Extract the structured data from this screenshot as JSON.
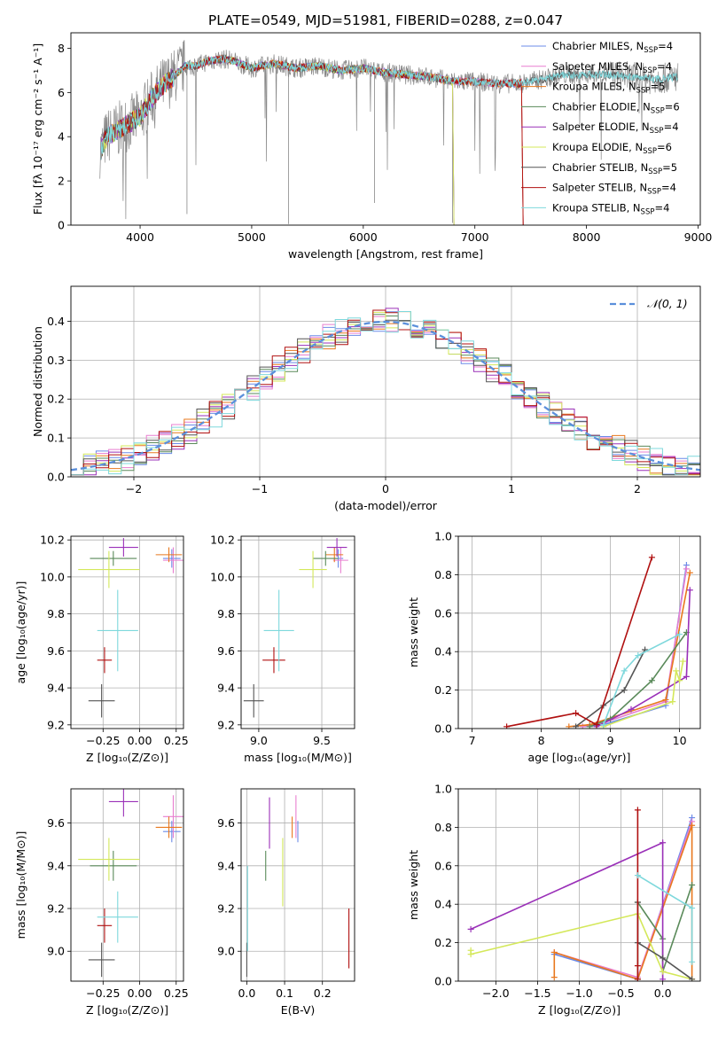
{
  "figure_title": "PLATE=0549, MJD=51981, FIBERID=0288, z=0.047",
  "colors": {
    "chabrier_miles": "#6b8be8",
    "salpeter_miles": "#e87fd0",
    "kroupa_miles": "#e8781e",
    "chabrier_elodie": "#5a8a5a",
    "salpeter_elodie": "#9a30b8",
    "kroupa_elodie": "#d4e85a",
    "chabrier_stelib": "#555555",
    "salpeter_stelib": "#b01010",
    "kroupa_stelib": "#7ed8dc",
    "data": "#888888",
    "gaussian": "#5b8fdb"
  },
  "chart_data": [
    {
      "id": "spectrum",
      "type": "line",
      "title": "PLATE=0549, MJD=51981, FIBERID=0288, z=0.047",
      "xlabel": "wavelength [Angstrom, rest frame]",
      "ylabel": "Flux [fλ 10⁻¹⁷ erg cm⁻² s⁻¹ A⁻¹]",
      "xlim": [
        3380,
        9020
      ],
      "ylim": [
        0,
        8.7
      ],
      "xticks": [
        4000,
        5000,
        6000,
        7000,
        8000,
        9000
      ],
      "yticks": [
        0,
        2,
        4,
        6,
        8
      ],
      "continuum": {
        "x": [
          3650,
          3700,
          3800,
          3900,
          4000,
          4100,
          4200,
          4300,
          4400,
          4500,
          4600,
          4700,
          4800,
          4900,
          5000,
          5200,
          5400,
          5600,
          5800,
          6000,
          6200,
          6400,
          6600,
          6800,
          7000,
          7200,
          7400,
          7600,
          7800,
          8000,
          8200,
          8400,
          8600,
          8800
        ],
        "y": [
          3.4,
          4.0,
          4.3,
          4.6,
          4.9,
          5.7,
          6.3,
          6.7,
          7.2,
          7.2,
          7.4,
          7.5,
          7.5,
          7.3,
          7.1,
          7.3,
          7.1,
          7.2,
          7.0,
          7.1,
          6.9,
          6.8,
          6.7,
          6.5,
          6.5,
          6.4,
          6.4,
          6.6,
          6.8,
          6.8,
          6.8,
          6.7,
          6.6,
          6.7
        ]
      },
      "legend": [
        {
          "label": "Chabrier MILES, N",
          "sub": "SSP",
          "suffix": "=4",
          "color_key": "chabrier_miles"
        },
        {
          "label": "Salpeter MILES, N",
          "sub": "SSP",
          "suffix": "=4",
          "color_key": "salpeter_miles"
        },
        {
          "label": "Kroupa MILES, N",
          "sub": "SSP",
          "suffix": "=5",
          "color_key": "kroupa_miles"
        },
        {
          "label": "Chabrier ELODIE, N",
          "sub": "SSP",
          "suffix": "=6",
          "color_key": "chabrier_elodie"
        },
        {
          "label": "Salpeter ELODIE, N",
          "sub": "SSP",
          "suffix": "=4",
          "color_key": "salpeter_elodie"
        },
        {
          "label": "Kroupa ELODIE, N",
          "sub": "SSP",
          "suffix": "=6",
          "color_key": "kroupa_elodie"
        },
        {
          "label": "Chabrier STELIB, N",
          "sub": "SSP",
          "suffix": "=5",
          "color_key": "chabrier_stelib"
        },
        {
          "label": "Salpeter STELIB, N",
          "sub": "SSP",
          "suffix": "=4",
          "color_key": "salpeter_stelib"
        },
        {
          "label": "Kroupa STELIB, N",
          "sub": "SSP",
          "suffix": "=4",
          "color_key": "kroupa_stelib"
        }
      ]
    },
    {
      "id": "residuals",
      "type": "line",
      "xlabel": "(data-model)/error",
      "ylabel": "Normed distribution",
      "xlim": [
        -2.5,
        2.5
      ],
      "ylim": [
        0,
        0.49
      ],
      "xticks": [
        -2,
        -1,
        0,
        1,
        2
      ],
      "yticks": [
        0.0,
        0.1,
        0.2,
        0.3,
        0.4
      ],
      "gaussian_label": "𝒩(0, 1)",
      "grid": true
    },
    {
      "id": "age_vs_Z",
      "type": "scatter",
      "xlabel": "Z [log₁₀(Z/Z⊙)]",
      "ylabel": "age  [log₁₀(age/yr)]",
      "xlim": [
        -0.47,
        0.3
      ],
      "ylim": [
        9.18,
        10.22
      ],
      "xticks": [
        -0.25,
        0.0,
        0.25
      ],
      "yticks": [
        9.2,
        9.4,
        9.6,
        9.8,
        10.0,
        10.2
      ],
      "points": [
        {
          "k": "chabrier_miles",
          "x": 0.22,
          "xe": 0.06,
          "y": 10.1,
          "ye": 0.05
        },
        {
          "k": "salpeter_miles",
          "x": 0.23,
          "xe": 0.07,
          "y": 10.09,
          "ye": 0.07
        },
        {
          "k": "kroupa_miles",
          "x": 0.2,
          "xe": 0.09,
          "y": 10.12,
          "ye": 0.04
        },
        {
          "k": "chabrier_elodie",
          "x": -0.18,
          "xe": 0.16,
          "y": 10.1,
          "ye": 0.04
        },
        {
          "k": "salpeter_elodie",
          "x": -0.11,
          "xe": 0.1,
          "y": 10.16,
          "ye": 0.05
        },
        {
          "k": "kroupa_elodie",
          "x": -0.21,
          "xe": 0.21,
          "y": 10.04,
          "ye": 0.1
        },
        {
          "k": "chabrier_stelib",
          "x": -0.26,
          "xe": 0.09,
          "y": 9.33,
          "ye": 0.09
        },
        {
          "k": "salpeter_stelib",
          "x": -0.24,
          "xe": 0.05,
          "y": 9.55,
          "ye": 0.07
        },
        {
          "k": "kroupa_stelib",
          "x": -0.15,
          "xe": 0.14,
          "y": 9.71,
          "ye": 0.22
        }
      ]
    },
    {
      "id": "age_vs_mass",
      "type": "scatter",
      "xlabel": "mass [log₁₀(M/M⊙)]",
      "ylabel": "",
      "xlim": [
        8.86,
        9.76
      ],
      "ylim": [
        9.18,
        10.22
      ],
      "xticks": [
        9.0,
        9.5
      ],
      "yticks": [
        9.2,
        9.4,
        9.6,
        9.8,
        10.0,
        10.2
      ],
      "points": [
        {
          "k": "chabrier_miles",
          "x": 9.63,
          "xe": 0.04,
          "y": 10.1,
          "ye": 0.05
        },
        {
          "k": "salpeter_miles",
          "x": 9.65,
          "xe": 0.06,
          "y": 10.09,
          "ye": 0.07
        },
        {
          "k": "kroupa_miles",
          "x": 9.6,
          "xe": 0.07,
          "y": 10.12,
          "ye": 0.04
        },
        {
          "k": "chabrier_elodie",
          "x": 9.53,
          "xe": 0.1,
          "y": 10.1,
          "ye": 0.04
        },
        {
          "k": "salpeter_elodie",
          "x": 9.62,
          "xe": 0.08,
          "y": 10.16,
          "ye": 0.05
        },
        {
          "k": "kroupa_elodie",
          "x": 9.43,
          "xe": 0.11,
          "y": 10.04,
          "ye": 0.1
        },
        {
          "k": "chabrier_stelib",
          "x": 8.96,
          "xe": 0.08,
          "y": 9.33,
          "ye": 0.09
        },
        {
          "k": "salpeter_stelib",
          "x": 9.12,
          "xe": 0.09,
          "y": 9.55,
          "ye": 0.07
        },
        {
          "k": "kroupa_stelib",
          "x": 9.16,
          "xe": 0.12,
          "y": 9.71,
          "ye": 0.22
        }
      ]
    },
    {
      "id": "mass_weight_vs_age",
      "type": "line",
      "xlabel": "age  [log₁₀(age/yr)]",
      "ylabel": "mass weight",
      "xlim": [
        6.8,
        10.3
      ],
      "ylim": [
        0,
        1.0
      ],
      "xticks": [
        7,
        8,
        9,
        10
      ],
      "yticks": [
        0.0,
        0.2,
        0.4,
        0.6,
        0.8,
        1.0
      ],
      "grid": true,
      "series": [
        {
          "k": "chabrier_miles",
          "x": [
            8.6,
            8.9,
            9.8,
            10.1
          ],
          "y": [
            0.01,
            0.02,
            0.12,
            0.85
          ]
        },
        {
          "k": "salpeter_miles",
          "x": [
            8.6,
            8.9,
            9.8,
            10.1
          ],
          "y": [
            0.01,
            0.03,
            0.14,
            0.83
          ]
        },
        {
          "k": "kroupa_miles",
          "x": [
            8.4,
            8.7,
            9.8,
            10.15
          ],
          "y": [
            0.01,
            0.02,
            0.15,
            0.81
          ]
        },
        {
          "k": "chabrier_elodie",
          "x": [
            8.7,
            9.0,
            9.6,
            10.1
          ],
          "y": [
            0.01,
            0.05,
            0.25,
            0.5
          ]
        },
        {
          "k": "salpeter_elodie",
          "x": [
            8.8,
            9.3,
            10.1,
            10.15
          ],
          "y": [
            0.01,
            0.1,
            0.27,
            0.72
          ]
        },
        {
          "k": "kroupa_elodie",
          "x": [
            8.9,
            9.9,
            9.95,
            10.0,
            10.05
          ],
          "y": [
            0.01,
            0.14,
            0.3,
            0.25,
            0.35
          ]
        },
        {
          "k": "chabrier_stelib",
          "x": [
            8.5,
            8.9,
            9.2,
            9.5
          ],
          "y": [
            0.01,
            0.12,
            0.2,
            0.41
          ]
        },
        {
          "k": "salpeter_stelib",
          "x": [
            7.5,
            8.5,
            8.8,
            9.6
          ],
          "y": [
            0.01,
            0.08,
            0.02,
            0.89
          ]
        },
        {
          "k": "kroupa_stelib",
          "x": [
            8.9,
            9.2,
            9.4,
            10.0
          ],
          "y": [
            0.02,
            0.3,
            0.38,
            0.49
          ]
        }
      ]
    },
    {
      "id": "mass_vs_Z",
      "type": "scatter",
      "xlabel": "Z [log₁₀(Z/Z⊙)]",
      "ylabel": "mass [log₁₀(M/M⊙)]",
      "xlim": [
        -0.47,
        0.3
      ],
      "ylim": [
        8.86,
        9.76
      ],
      "xticks": [
        -0.25,
        0.0,
        0.25
      ],
      "yticks": [
        9.0,
        9.2,
        9.4,
        9.6
      ],
      "points": [
        {
          "k": "chabrier_miles",
          "x": 0.22,
          "xe": 0.06,
          "y": 9.56,
          "ye": 0.05
        },
        {
          "k": "salpeter_miles",
          "x": 0.23,
          "xe": 0.07,
          "y": 9.63,
          "ye": 0.1
        },
        {
          "k": "kroupa_miles",
          "x": 0.2,
          "xe": 0.09,
          "y": 9.58,
          "ye": 0.05
        },
        {
          "k": "chabrier_elodie",
          "x": -0.18,
          "xe": 0.16,
          "y": 9.4,
          "ye": 0.07
        },
        {
          "k": "salpeter_elodie",
          "x": -0.11,
          "xe": 0.1,
          "y": 9.7,
          "ye": 0.07
        },
        {
          "k": "kroupa_elodie",
          "x": -0.21,
          "xe": 0.21,
          "y": 9.43,
          "ye": 0.1
        },
        {
          "k": "chabrier_stelib",
          "x": -0.26,
          "xe": 0.09,
          "y": 8.96,
          "ye": 0.08
        },
        {
          "k": "salpeter_stelib",
          "x": -0.24,
          "xe": 0.05,
          "y": 9.12,
          "ye": 0.08
        },
        {
          "k": "kroupa_stelib",
          "x": -0.15,
          "xe": 0.14,
          "y": 9.16,
          "ye": 0.12
        }
      ]
    },
    {
      "id": "mass_vs_ebv",
      "type": "scatter",
      "xlabel": "E(B-V)",
      "ylabel": "",
      "xlim": [
        -0.015,
        0.285
      ],
      "ylim": [
        8.86,
        9.76
      ],
      "xticks": [
        0.0,
        0.1,
        0.2
      ],
      "yticks": [
        9.0,
        9.2,
        9.4,
        9.6
      ],
      "points": [
        {
          "k": "chabrier_miles",
          "x": 0.135,
          "xe": 0,
          "y": 9.56,
          "ye": 0.05
        },
        {
          "k": "salpeter_miles",
          "x": 0.13,
          "xe": 0,
          "y": 9.63,
          "ye": 0.1
        },
        {
          "k": "kroupa_miles",
          "x": 0.12,
          "xe": 0,
          "y": 9.58,
          "ye": 0.05
        },
        {
          "k": "chabrier_elodie",
          "x": 0.05,
          "xe": 0,
          "y": 9.4,
          "ye": 0.07
        },
        {
          "k": "salpeter_elodie",
          "x": 0.06,
          "xe": 0,
          "y": 9.6,
          "ye": 0.12
        },
        {
          "k": "kroupa_elodie",
          "x": 0.095,
          "xe": 0,
          "y": 9.37,
          "ye": 0.16
        },
        {
          "k": "chabrier_stelib",
          "x": 0.0,
          "xe": 0,
          "y": 8.96,
          "ye": 0.08
        },
        {
          "k": "salpeter_stelib",
          "x": 0.27,
          "xe": 0,
          "y": 9.06,
          "ye": 0.14
        },
        {
          "k": "kroupa_stelib",
          "x": 0.002,
          "xe": 0,
          "y": 9.2,
          "ye": 0.2
        }
      ]
    },
    {
      "id": "mass_weight_vs_Z",
      "type": "line",
      "xlabel": "Z [log₁₀(Z/Z⊙)]",
      "ylabel": "mass weight",
      "xlim": [
        -2.45,
        0.45
      ],
      "ylim": [
        0,
        1.0
      ],
      "xticks": [
        -2.0,
        -1.5,
        -1.0,
        -0.5,
        0.0
      ],
      "yticks": [
        0.0,
        0.2,
        0.4,
        0.6,
        0.8,
        1.0
      ],
      "grid": true,
      "series": [
        {
          "k": "chabrier_miles",
          "x": [
            -1.3,
            -0.3,
            0.35
          ],
          "y": [
            0.14,
            0.01,
            0.85
          ]
        },
        {
          "k": "salpeter_miles",
          "x": [
            -1.3,
            -0.3,
            0.35
          ],
          "y": [
            0.15,
            0.02,
            0.83
          ]
        },
        {
          "k": "kroupa_miles",
          "x": [
            -1.3,
            -1.3,
            -0.3,
            0.35,
            0.35
          ],
          "y": [
            0.02,
            0.15,
            0.01,
            0.81,
            0.01
          ]
        },
        {
          "k": "chabrier_elodie",
          "x": [
            -0.3,
            -0.3,
            0.0,
            0.0,
            0.35
          ],
          "y": [
            0.01,
            0.41,
            0.22,
            0.05,
            0.5
          ]
        },
        {
          "k": "salpeter_elodie",
          "x": [
            -2.3,
            0.0,
            0.0
          ],
          "y": [
            0.27,
            0.72,
            0.01
          ]
        },
        {
          "k": "kroupa_elodie",
          "x": [
            -2.3,
            -2.3,
            -0.3,
            0.0,
            0.35
          ],
          "y": [
            0.16,
            0.14,
            0.35,
            0.05,
            0.01
          ]
        },
        {
          "k": "chabrier_stelib",
          "x": [
            -0.3,
            -0.3,
            0.0,
            0.35
          ],
          "y": [
            0.41,
            0.2,
            0.12,
            0.01
          ]
        },
        {
          "k": "salpeter_stelib",
          "x": [
            -0.3,
            -0.3,
            -0.3
          ],
          "y": [
            0.01,
            0.89,
            0.08
          ]
        },
        {
          "k": "kroupa_stelib",
          "x": [
            -0.3,
            0.35,
            0.35
          ],
          "y": [
            0.55,
            0.38,
            0.1
          ]
        }
      ]
    }
  ]
}
